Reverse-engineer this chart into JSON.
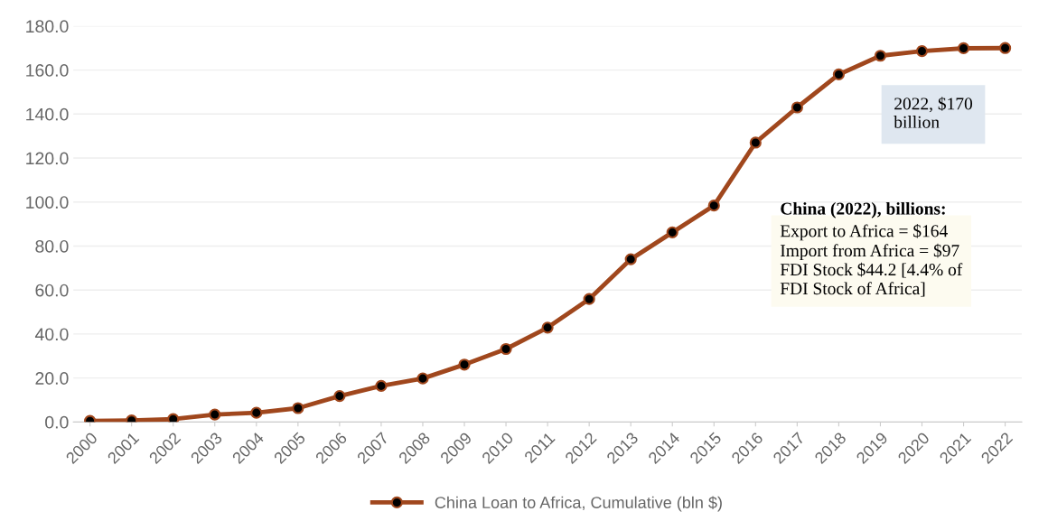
{
  "chart_data": {
    "type": "line",
    "categories": [
      "2000",
      "2001",
      "2002",
      "2003",
      "2004",
      "2005",
      "2006",
      "2007",
      "2008",
      "2009",
      "2010",
      "2011",
      "2012",
      "2013",
      "2014",
      "2015",
      "2016",
      "2017",
      "2018",
      "2019",
      "2020",
      "2021",
      "2022"
    ],
    "series": [
      {
        "name": "China Loan to Africa, Cumulative (bln $)",
        "color": "#a0471d",
        "values": [
          0.5,
          0.7,
          1.3,
          3.4,
          4.2,
          6.3,
          11.8,
          16.4,
          19.8,
          26.1,
          33.2,
          42.9,
          55.9,
          74.0,
          86.2,
          98.4,
          127.0,
          143.0,
          158.0,
          166.5,
          168.6,
          169.9,
          170.0
        ]
      }
    ],
    "ylim": [
      0,
      180
    ],
    "yticks": [
      {
        "value": 0,
        "label": "0.0"
      },
      {
        "value": 20,
        "label": "20.0"
      },
      {
        "value": 40,
        "label": "40.0"
      },
      {
        "value": 60,
        "label": "60.0"
      },
      {
        "value": 80,
        "label": "80.0"
      },
      {
        "value": 100,
        "label": "100.0"
      },
      {
        "value": 120,
        "label": "120.0"
      },
      {
        "value": 140,
        "label": "140.0"
      },
      {
        "value": 160,
        "label": "160.0"
      },
      {
        "value": 180,
        "label": "180.0"
      }
    ],
    "grid": "y",
    "legend": "bottom",
    "marker": "circle",
    "line_style": "solid",
    "annotations": [
      "2022, $170\nbillion",
      "China (2022), billions:",
      "Export to Africa = $164\nImport from Africa = $97\nFDI Stock $44.2 [4.4% of\nFDI Stock of Africa]"
    ]
  }
}
